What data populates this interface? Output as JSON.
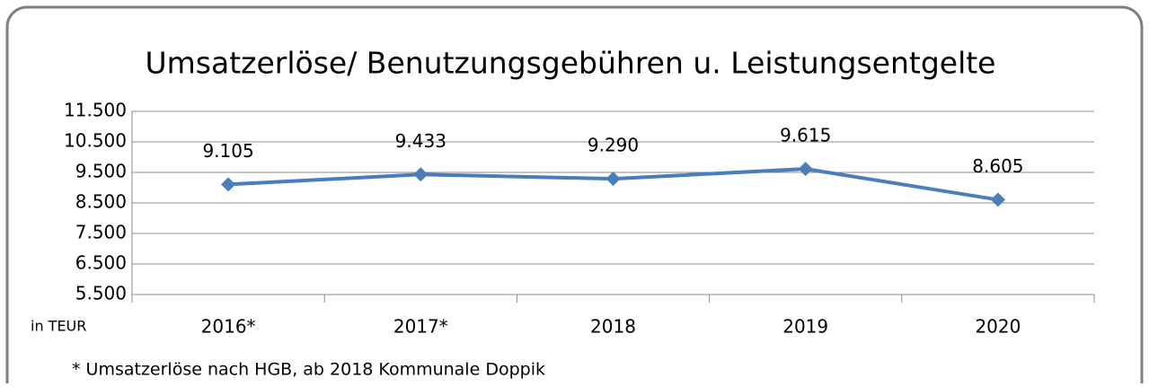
{
  "chart_data": {
    "type": "line",
    "title": "Umsatzerlöse/ Benutzungsgebühren u. Leistungsentgelte",
    "categories": [
      "2016*",
      "2017*",
      "2018",
      "2019",
      "2020"
    ],
    "series": [
      {
        "name": "Umsatzerlöse",
        "color": "#4a7ebb",
        "values": [
          9105,
          9433,
          9290,
          9615,
          8605
        ],
        "value_labels": [
          "9.105",
          "9.433",
          "9.290",
          "9.615",
          "8.605"
        ]
      }
    ],
    "ylim": [
      5500,
      11500
    ],
    "yticks": [
      {
        "value": 5500,
        "label": "5.500"
      },
      {
        "value": 6500,
        "label": "6.500"
      },
      {
        "value": 7500,
        "label": "7.500"
      },
      {
        "value": 8500,
        "label": "8.500"
      },
      {
        "value": 9500,
        "label": "9.500"
      },
      {
        "value": 10500,
        "label": "10.500"
      },
      {
        "value": 11500,
        "label": "11.500"
      }
    ],
    "grid": true,
    "unit_label": "in TEUR",
    "footnote": "* Umsatzerlöse nach HGB, ab 2018 Kommunale Doppik"
  }
}
